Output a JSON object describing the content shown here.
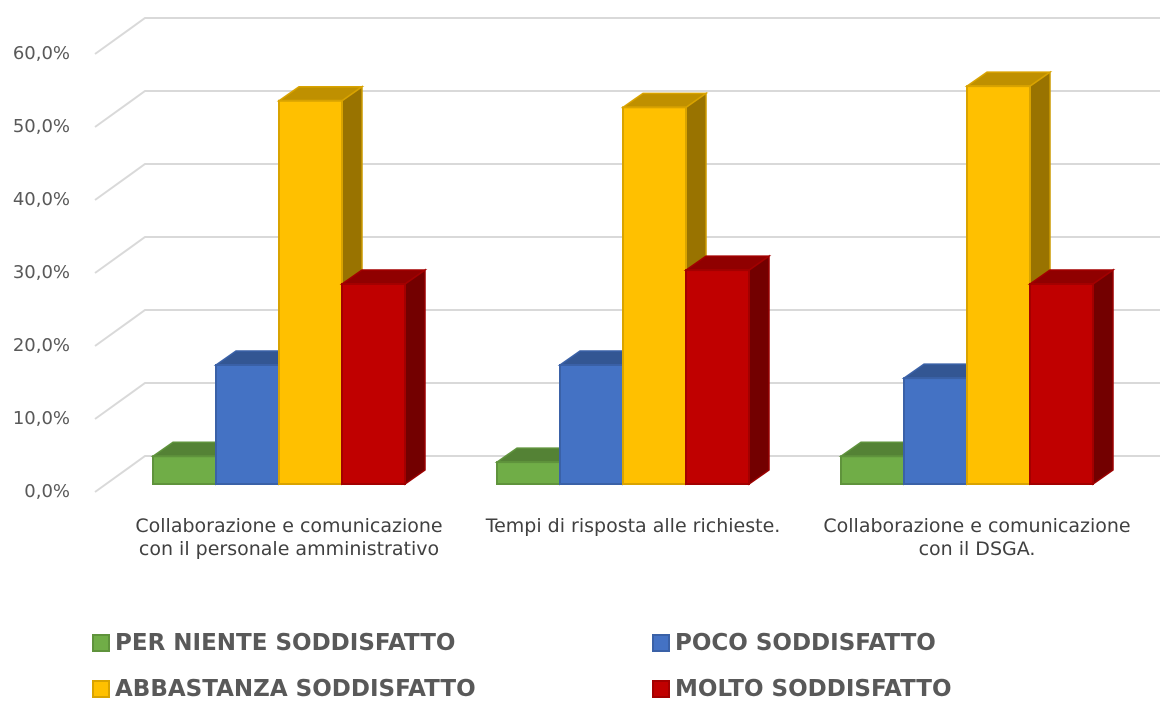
{
  "chart_data": {
    "type": "bar3d",
    "categories": [
      "Collaborazione e comunicazione con il personale amministrativo",
      "Tempi di risposta alle richieste.",
      "Collaborazione e comunicazione con il DSGA."
    ],
    "series": [
      {
        "name": "PER NIENTE SODDISFATTO",
        "color": "#70ad47",
        "values": [
          3.8,
          3.0,
          3.8
        ]
      },
      {
        "name": "POCO SODDISFATTO",
        "color": "#4472c4",
        "values": [
          16.3,
          16.3,
          14.5
        ]
      },
      {
        "name": "ABBASTANZA SODDISFATTO",
        "color": "#ffc000",
        "values": [
          52.5,
          51.6,
          54.5
        ]
      },
      {
        "name": "MOLTO SODDISFATTO",
        "color": "#c00000",
        "values": [
          27.4,
          29.3,
          27.4
        ]
      }
    ],
    "ylim": [
      0,
      60
    ],
    "yticks": [
      {
        "value": 0,
        "label": "0,0%"
      },
      {
        "value": 10,
        "label": "10,0%"
      },
      {
        "value": 20,
        "label": "20,0%"
      },
      {
        "value": 30,
        "label": "30,0%"
      },
      {
        "value": 40,
        "label": "40,0%"
      },
      {
        "value": 50,
        "label": "50,0%"
      },
      {
        "value": 60,
        "label": "60,0%"
      }
    ],
    "grid": true,
    "legend": "bottom"
  }
}
